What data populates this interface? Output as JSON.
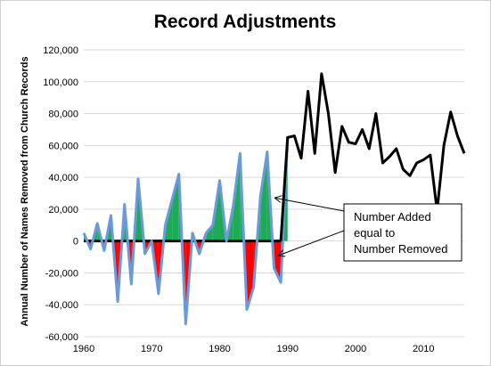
{
  "chart_data": {
    "type": "line",
    "title": "Record Adjustments",
    "xlabel": "",
    "ylabel": "Annual Number of Names Removed from Church Records",
    "xlim": [
      1960,
      2016
    ],
    "ylim": [
      -60000,
      120000
    ],
    "x_ticks": [
      "1960",
      "1970",
      "1980",
      "1990",
      "2000",
      "2010"
    ],
    "y_ticks": [
      "-60,000",
      "-40,000",
      "-20,000",
      "0",
      "20,000",
      "40,000",
      "60,000",
      "80,000",
      "100,000",
      "120,000"
    ],
    "grid": "horizontal",
    "colors": {
      "early_line": "#6a9bd8",
      "late_line": "#000000",
      "fill_positive": "#1faa59",
      "fill_negative": "#ff0000",
      "zero_line": "#000000"
    },
    "series": [
      {
        "x": [
          1960,
          1961,
          1962,
          1963,
          1964,
          1965,
          1966,
          1967,
          1968,
          1969,
          1970,
          1971,
          1972,
          1973,
          1974,
          1975,
          1976,
          1977,
          1978,
          1979,
          1980,
          1981,
          1982,
          1983,
          1984,
          1985,
          1986,
          1987,
          1988,
          1989,
          1990
        ],
        "values": [
          5000,
          -5000,
          11000,
          -6000,
          16000,
          -38000,
          23000,
          -27000,
          39000,
          -8000,
          0,
          -33000,
          10000,
          26000,
          42000,
          -52000,
          5000,
          -8000,
          5000,
          10000,
          38000,
          0,
          22000,
          55000,
          -43000,
          -29000,
          28000,
          56000,
          -17000,
          -26000,
          64000
        ]
      },
      {
        "x": [
          1989,
          1990,
          1991,
          1992,
          1993,
          1994,
          1995,
          1996,
          1997,
          1998,
          1999,
          2000,
          2001,
          2002,
          2003,
          2004,
          2005,
          2006,
          2007,
          2008,
          2009,
          2010,
          2011,
          2012,
          2013,
          2014,
          2015,
          2016
        ],
        "values": [
          0,
          65000,
          66000,
          52000,
          94000,
          55000,
          105000,
          80000,
          43000,
          72000,
          62000,
          61000,
          70000,
          58000,
          80000,
          49000,
          53000,
          58000,
          45000,
          41000,
          49000,
          51000,
          54000,
          19000,
          60000,
          81000,
          66000,
          55000
        ]
      }
    ],
    "zero_line_x": [
      1960,
      1989
    ],
    "annotation": {
      "lines": [
        "Number Added",
        "equal to",
        "Number Removed"
      ],
      "arrow_targets": [
        [
          1988.2,
          27000
        ],
        [
          1988.7,
          -9000
        ]
      ]
    }
  }
}
